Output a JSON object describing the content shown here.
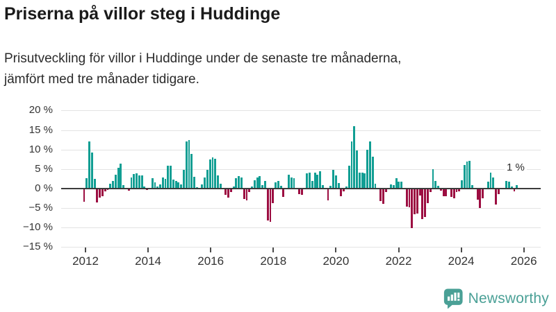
{
  "header": {
    "title": "Priserna på villor steg i Huddinge",
    "subtitle_line1": "Prisutveckling för villor i Huddinge under de senaste tre månaderna,",
    "subtitle_line2": "jämfört med tre månader tidigare."
  },
  "footer": {
    "logo_text": "Newsworthy"
  },
  "colors": {
    "positive_bar": "#119e93",
    "negative_bar": "#9c0d41",
    "gridline": "#e3e3e3",
    "zero_line": "#3b3b3b",
    "axis_text": "#333333",
    "logo_teal": "#4aa096"
  },
  "chart_data": {
    "type": "bar",
    "unit": "%",
    "frequency": "monthly",
    "x_start": "2012-01",
    "x_end": "2025-10",
    "ylim": [
      -15,
      20
    ],
    "grid": true,
    "yticks": [
      20,
      15,
      10,
      5,
      0,
      -5,
      -10,
      -15
    ],
    "ytick_labels": [
      "20 %",
      "15 %",
      "10 %",
      "5 %",
      "0 %",
      "−5 %",
      "−10 %",
      "−15 %"
    ],
    "xticks": [
      2012,
      2014,
      2016,
      2018,
      2020,
      2022,
      2024,
      2026
    ],
    "xtick_labels": [
      "2012",
      "2014",
      "2016",
      "2018",
      "2020",
      "2022",
      "2024",
      "2026"
    ],
    "annotation": {
      "text": "1 %",
      "refers_to": "last value (Oct 2025)"
    },
    "values": [
      -3.4,
      2.7,
      12.0,
      9.2,
      2.5,
      -3.6,
      -2.3,
      -2.0,
      -0.7,
      -0.4,
      1.3,
      1.9,
      3.5,
      5.3,
      6.4,
      0.9,
      0.0,
      -0.5,
      2.8,
      3.7,
      3.8,
      3.3,
      3.3,
      0.5,
      -0.4,
      0.0,
      2.6,
      1.5,
      0.5,
      1.0,
      2.9,
      2.5,
      5.8,
      5.8,
      2.3,
      2.0,
      1.5,
      1.0,
      4.7,
      12.1,
      12.4,
      8.9,
      3.0,
      0.3,
      -0.2,
      1.0,
      2.8,
      4.8,
      7.4,
      7.9,
      7.6,
      3.3,
      1.2,
      0.0,
      -1.7,
      -2.3,
      -1.0,
      0.5,
      2.7,
      3.2,
      2.8,
      -2.7,
      -3.0,
      -1.0,
      0.5,
      2.1,
      2.8,
      3.2,
      0.9,
      2.0,
      -8.2,
      -8.6,
      -3.8,
      1.6,
      1.9,
      0.6,
      -2.2,
      0.0,
      3.6,
      2.8,
      2.7,
      0.0,
      -1.4,
      -1.7,
      0.0,
      3.8,
      4.0,
      1.9,
      4.0,
      3.6,
      4.5,
      0.9,
      0.0,
      -3.0,
      0.7,
      4.8,
      3.3,
      1.4,
      -2.0,
      -0.8,
      0.5,
      5.8,
      12.0,
      16.0,
      9.8,
      4.0,
      4.0,
      3.9,
      9.9,
      12.0,
      8.2,
      1.2,
      0.0,
      -3.2,
      -4.0,
      -1.0,
      0.0,
      1.0,
      0.9,
      2.7,
      1.8,
      1.8,
      0.0,
      -4.6,
      -4.9,
      -10.1,
      -6.7,
      -6.4,
      -1.9,
      -7.9,
      -7.3,
      -3.8,
      -1.0,
      4.9,
      2.0,
      0.6,
      -0.5,
      -2.0,
      -2.0,
      0.0,
      -2.2,
      -2.5,
      -1.0,
      -0.8,
      2.1,
      6.0,
      7.0,
      7.1,
      0.8,
      0.0,
      -2.9,
      -5.1,
      -2.5,
      0.0,
      1.8,
      4.0,
      2.8,
      -4.2,
      -1.4,
      0.0,
      0.0,
      2.0,
      1.7,
      0.5,
      -0.7,
      0.9
    ]
  }
}
